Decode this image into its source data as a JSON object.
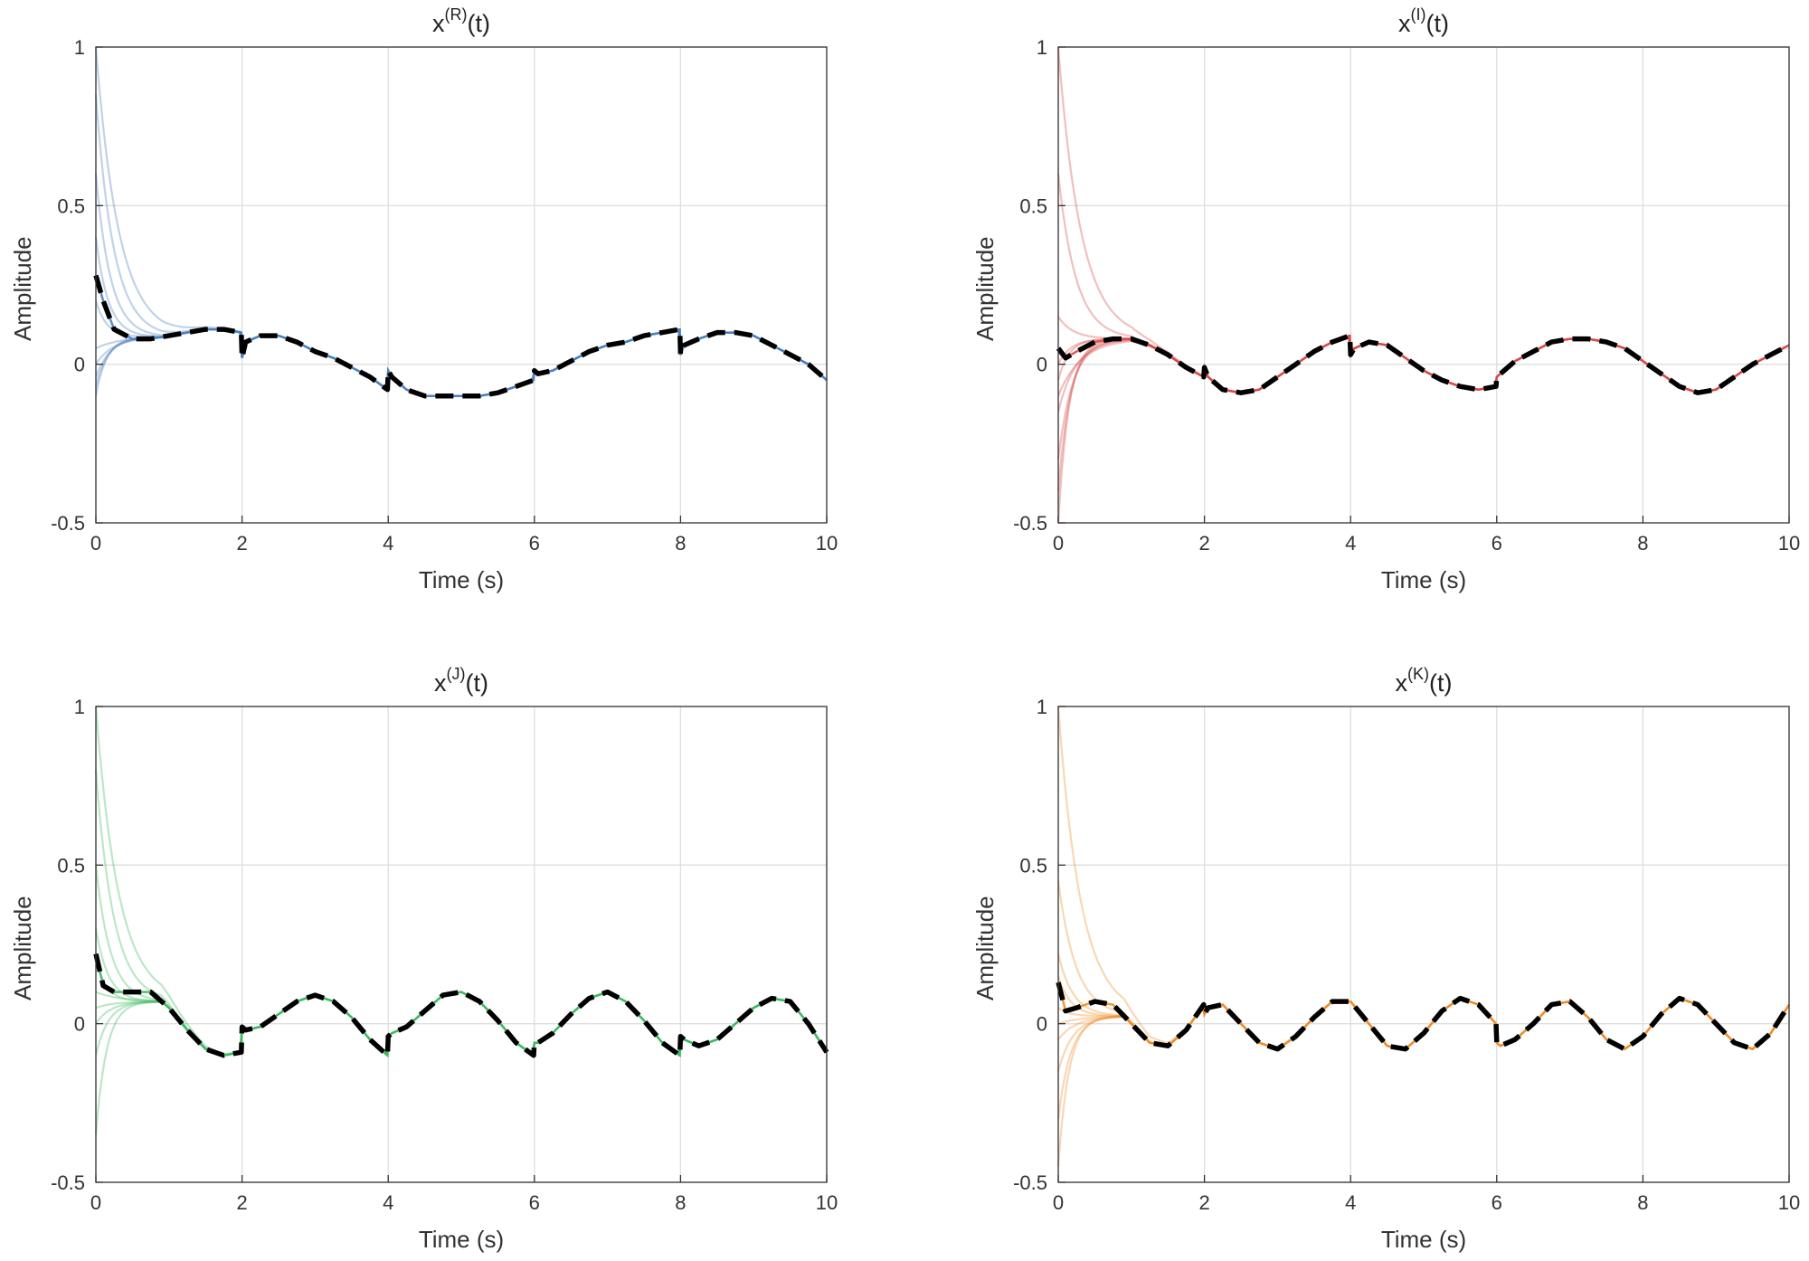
{
  "chart_data": [
    {
      "type": "line",
      "title": {
        "base": "x",
        "sup": "(R)",
        "suffix": "(t)"
      },
      "xlabel": "Time (s)",
      "ylabel": "Amplitude",
      "xlim": [
        0,
        10
      ],
      "ylim": [
        -0.5,
        1
      ],
      "xticks": [
        "0",
        "2",
        "4",
        "6",
        "8",
        "10"
      ],
      "yticks": [
        "-0.5",
        "0",
        "0.5",
        "1"
      ],
      "grid": true,
      "color": "#4a7fc1",
      "trajectories_initial_values": [
        1.0,
        0.85,
        0.6,
        0.4,
        0.2,
        0.05,
        0.0,
        -0.04,
        -0.07,
        -0.1
      ],
      "series": [
        {
          "style": "dashed-black",
          "x": [
            0,
            0.1,
            0.25,
            0.5,
            0.75,
            1.0,
            1.25,
            1.5,
            1.75,
            1.99,
            2.0,
            2.05,
            2.25,
            2.5,
            2.75,
            3.0,
            3.25,
            3.5,
            3.75,
            3.99,
            4.0,
            4.05,
            4.25,
            4.5,
            4.75,
            5.0,
            5.25,
            5.5,
            5.75,
            5.99,
            6.0,
            6.05,
            6.25,
            6.5,
            6.75,
            7.0,
            7.25,
            7.5,
            7.75,
            7.99,
            8.0,
            8.05,
            8.25,
            8.5,
            8.75,
            9.0,
            9.25,
            9.5,
            9.75,
            10.0
          ],
          "y": [
            0.28,
            0.2,
            0.11,
            0.08,
            0.08,
            0.09,
            0.1,
            0.11,
            0.11,
            0.1,
            0.02,
            0.07,
            0.09,
            0.09,
            0.07,
            0.04,
            0.02,
            -0.01,
            -0.04,
            -0.08,
            -0.02,
            -0.04,
            -0.08,
            -0.1,
            -0.1,
            -0.1,
            -0.1,
            -0.09,
            -0.07,
            -0.05,
            -0.02,
            -0.03,
            -0.02,
            0.01,
            0.04,
            0.06,
            0.07,
            0.09,
            0.1,
            0.11,
            0.03,
            0.06,
            0.08,
            0.1,
            0.1,
            0.09,
            0.06,
            0.03,
            0.0,
            -0.05
          ]
        }
      ]
    },
    {
      "type": "line",
      "title": {
        "base": "x",
        "sup": "(I)",
        "suffix": "(t)"
      },
      "xlabel": "Time (s)",
      "ylabel": "Amplitude",
      "xlim": [
        0,
        10
      ],
      "ylim": [
        -0.5,
        1
      ],
      "xticks": [
        "0",
        "2",
        "4",
        "6",
        "8",
        "10"
      ],
      "yticks": [
        "-0.5",
        "0",
        "0.5",
        "1"
      ],
      "grid": true,
      "color": "#d94848",
      "trajectories_initial_values": [
        1.0,
        0.6,
        0.15,
        0.0,
        -0.05,
        -0.1,
        -0.15,
        -0.3,
        -0.4,
        -0.5
      ],
      "series": [
        {
          "style": "dashed-black",
          "x": [
            0,
            0.1,
            0.25,
            0.5,
            0.75,
            1.0,
            1.25,
            1.5,
            1.75,
            1.99,
            2.0,
            2.05,
            2.25,
            2.5,
            2.75,
            3.0,
            3.25,
            3.5,
            3.75,
            3.99,
            4.0,
            4.05,
            4.25,
            4.5,
            4.75,
            5.0,
            5.25,
            5.5,
            5.75,
            5.99,
            6.0,
            6.05,
            6.25,
            6.5,
            6.75,
            7.0,
            7.25,
            7.5,
            7.75,
            8.0,
            8.25,
            8.5,
            8.75,
            9.0,
            9.25,
            9.5,
            9.75,
            10.0
          ],
          "y": [
            0.05,
            0.02,
            0.04,
            0.07,
            0.08,
            0.08,
            0.06,
            0.03,
            -0.01,
            -0.04,
            -0.01,
            -0.04,
            -0.08,
            -0.09,
            -0.08,
            -0.04,
            0.0,
            0.04,
            0.07,
            0.09,
            0.03,
            0.05,
            0.07,
            0.06,
            0.02,
            -0.02,
            -0.05,
            -0.07,
            -0.08,
            -0.07,
            -0.04,
            -0.03,
            0.01,
            0.04,
            0.07,
            0.08,
            0.08,
            0.07,
            0.05,
            0.01,
            -0.03,
            -0.07,
            -0.09,
            -0.08,
            -0.04,
            0.0,
            0.03,
            0.06
          ]
        }
      ]
    },
    {
      "type": "line",
      "title": {
        "base": "x",
        "sup": "(J)",
        "suffix": "(t)"
      },
      "xlabel": "Time (s)",
      "ylabel": "Amplitude",
      "xlim": [
        0,
        10
      ],
      "ylim": [
        -0.5,
        1
      ],
      "xticks": [
        "0",
        "2",
        "4",
        "6",
        "8",
        "10"
      ],
      "yticks": [
        "-0.5",
        "0",
        "0.5",
        "1"
      ],
      "grid": true,
      "color": "#3cba5e",
      "trajectories_initial_values": [
        1.0,
        0.8,
        0.5,
        0.3,
        0.2,
        0.1,
        0.05,
        0.0,
        -0.1,
        -0.35
      ],
      "series": [
        {
          "style": "dashed-black",
          "x": [
            0,
            0.1,
            0.25,
            0.5,
            0.75,
            1.0,
            1.25,
            1.5,
            1.75,
            1.99,
            2.0,
            2.05,
            2.25,
            2.5,
            2.75,
            3.0,
            3.25,
            3.5,
            3.75,
            3.99,
            4.0,
            4.05,
            4.25,
            4.5,
            4.75,
            5.0,
            5.25,
            5.5,
            5.75,
            5.99,
            6.0,
            6.05,
            6.25,
            6.5,
            6.75,
            7.0,
            7.25,
            7.5,
            7.75,
            7.99,
            8.0,
            8.05,
            8.25,
            8.5,
            8.75,
            9.0,
            9.25,
            9.5,
            9.75,
            10.0
          ],
          "y": [
            0.22,
            0.12,
            0.1,
            0.1,
            0.1,
            0.05,
            -0.02,
            -0.08,
            -0.1,
            -0.09,
            -0.01,
            -0.02,
            -0.01,
            0.03,
            0.07,
            0.09,
            0.07,
            0.02,
            -0.05,
            -0.1,
            -0.04,
            -0.03,
            -0.01,
            0.04,
            0.09,
            0.1,
            0.07,
            0.01,
            -0.06,
            -0.1,
            -0.06,
            -0.06,
            -0.03,
            0.03,
            0.08,
            0.1,
            0.07,
            0.01,
            -0.06,
            -0.1,
            -0.04,
            -0.05,
            -0.07,
            -0.05,
            0.0,
            0.05,
            0.08,
            0.07,
            0.0,
            -0.09
          ]
        }
      ]
    },
    {
      "type": "line",
      "title": {
        "base": "x",
        "sup": "(K)",
        "suffix": "(t)"
      },
      "xlabel": "Time (s)",
      "ylabel": "Amplitude",
      "xlim": [
        0,
        10
      ],
      "ylim": [
        -0.5,
        1
      ],
      "xticks": [
        "0",
        "2",
        "4",
        "6",
        "8",
        "10"
      ],
      "yticks": [
        "-0.5",
        "0",
        "0.5",
        "1"
      ],
      "grid": true,
      "color": "#f08c28",
      "trajectories_initial_values": [
        1.0,
        0.45,
        0.22,
        0.15,
        0.05,
        0.0,
        -0.05,
        -0.15,
        -0.3,
        -0.45
      ],
      "series": [
        {
          "style": "dashed-black",
          "x": [
            0,
            0.1,
            0.25,
            0.5,
            0.75,
            1.0,
            1.25,
            1.5,
            1.75,
            1.99,
            2.0,
            2.05,
            2.25,
            2.5,
            2.75,
            3.0,
            3.25,
            3.5,
            3.75,
            4.0,
            4.25,
            4.5,
            4.75,
            5.0,
            5.25,
            5.5,
            5.75,
            5.99,
            6.0,
            6.05,
            6.25,
            6.5,
            6.75,
            7.0,
            7.25,
            7.5,
            7.75,
            8.0,
            8.25,
            8.5,
            8.75,
            9.0,
            9.25,
            9.5,
            9.75,
            10.0
          ],
          "y": [
            0.13,
            0.04,
            0.05,
            0.07,
            0.06,
            0.0,
            -0.06,
            -0.07,
            -0.02,
            0.06,
            0.03,
            0.05,
            0.06,
            0.0,
            -0.06,
            -0.08,
            -0.04,
            0.02,
            0.07,
            0.07,
            0.0,
            -0.07,
            -0.08,
            -0.03,
            0.04,
            0.08,
            0.06,
            0.0,
            -0.06,
            -0.07,
            -0.05,
            0.0,
            0.06,
            0.07,
            0.02,
            -0.05,
            -0.08,
            -0.04,
            0.03,
            0.08,
            0.06,
            0.0,
            -0.06,
            -0.08,
            -0.03,
            0.06
          ]
        }
      ]
    }
  ]
}
